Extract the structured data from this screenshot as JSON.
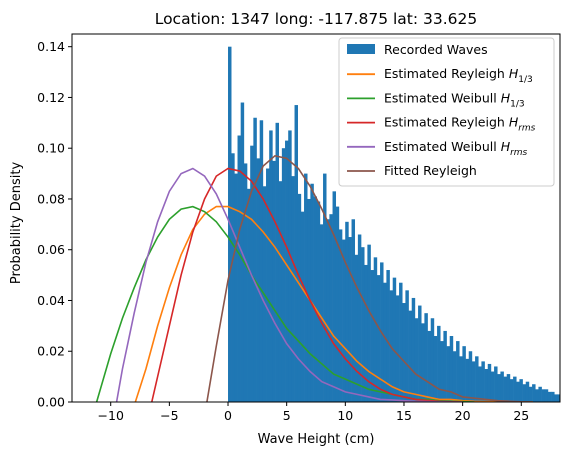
{
  "chart_data": {
    "type": "histogram+line",
    "title": "Location: 1347 long: -117.875 lat: 33.625",
    "xlabel": "Wave Height (cm)",
    "ylabel": "Probability Density",
    "xlim": [
      -13.3,
      28.3
    ],
    "ylim": [
      0,
      0.145
    ],
    "xticks": [
      -10,
      -5,
      0,
      5,
      10,
      15,
      20,
      25
    ],
    "yticks": [
      0.0,
      0.02,
      0.04,
      0.06,
      0.08,
      0.1,
      0.12,
      0.14
    ],
    "xtick_labels": [
      "−10",
      "−5",
      "0",
      "5",
      "10",
      "15",
      "20",
      "25"
    ],
    "ytick_labels": [
      "0.00",
      "0.02",
      "0.04",
      "0.06",
      "0.08",
      "0.10",
      "0.12",
      "0.14"
    ],
    "legend_position": "upper-right",
    "histogram": {
      "name": "Recorded Waves",
      "color": "#1f77b4",
      "bin_width": 0.27,
      "x_start": 0.0,
      "values": [
        0.14,
        0.098,
        0.09,
        0.105,
        0.118,
        0.094,
        0.084,
        0.101,
        0.112,
        0.096,
        0.111,
        0.085,
        0.092,
        0.107,
        0.095,
        0.11,
        0.087,
        0.1,
        0.103,
        0.107,
        0.089,
        0.117,
        0.082,
        0.075,
        0.09,
        0.08,
        0.086,
        0.081,
        0.079,
        0.07,
        0.09,
        0.072,
        0.074,
        0.083,
        0.077,
        0.068,
        0.064,
        0.071,
        0.065,
        0.072,
        0.058,
        0.066,
        0.061,
        0.054,
        0.062,
        0.052,
        0.057,
        0.05,
        0.055,
        0.047,
        0.052,
        0.044,
        0.049,
        0.042,
        0.047,
        0.039,
        0.044,
        0.036,
        0.041,
        0.033,
        0.038,
        0.031,
        0.035,
        0.028,
        0.033,
        0.026,
        0.03,
        0.024,
        0.028,
        0.022,
        0.026,
        0.02,
        0.024,
        0.018,
        0.022,
        0.017,
        0.02,
        0.016,
        0.018,
        0.014,
        0.016,
        0.013,
        0.015,
        0.012,
        0.014,
        0.011,
        0.012,
        0.01,
        0.011,
        0.009,
        0.01,
        0.008,
        0.009,
        0.007,
        0.008,
        0.006,
        0.007,
        0.005,
        0.006,
        0.005,
        0.005,
        0.004,
        0.004,
        0.003,
        0.003,
        0.003,
        0.002,
        0.002,
        0.002,
        0.001,
        0.001,
        0.001,
        0.001,
        0.001,
        0.001,
        0.001,
        0.0,
        0.0,
        0.001,
        0.002,
        0.0,
        0.001,
        0.001,
        0.002,
        0.001,
        0.0,
        0.0,
        0.001,
        0.002,
        0.0,
        0.0,
        0.003,
        0.0,
        0.002,
        0.001,
        0.0,
        0.002,
        0.003,
        0.002,
        0.001,
        0.001,
        0.0,
        0.0,
        0.0,
        0.0,
        0.0,
        0.0,
        0.0,
        0.0,
        0.0,
        0.0,
        0.0,
        0.0,
        0.0,
        0.0,
        0.0,
        0.0,
        0.0,
        0.0,
        0.0,
        0.0,
        0.0,
        0.0,
        0.0,
        0.0,
        0.0,
        0.0,
        0.0,
        0.0,
        0.0,
        0.0,
        0.0,
        0.0,
        0.0,
        0.0,
        0.0,
        0.0,
        0.0,
        0.0,
        0.0,
        0.0,
        0.0,
        0.0,
        0.0,
        0.0,
        0.0,
        0.0,
        0.0,
        0.0,
        0.0,
        0.0,
        0.003,
        0.005,
        0.004
      ]
    },
    "series": [
      {
        "name": "Estimated Reyleigh",
        "subscript": "1/3",
        "color": "#ff7f0e",
        "x": [
          -7.9,
          -7,
          -6,
          -5,
          -4,
          -3,
          -2,
          -1,
          0,
          1,
          2,
          3,
          4,
          5,
          6,
          7,
          8,
          9,
          10,
          11,
          12,
          13,
          14,
          15,
          16,
          17,
          18,
          19,
          20,
          21,
          22,
          23,
          24,
          25,
          26
        ],
        "y": [
          0.0,
          0.013,
          0.03,
          0.045,
          0.058,
          0.068,
          0.074,
          0.077,
          0.077,
          0.075,
          0.072,
          0.067,
          0.061,
          0.054,
          0.047,
          0.04,
          0.033,
          0.026,
          0.021,
          0.016,
          0.012,
          0.009,
          0.006,
          0.004,
          0.003,
          0.002,
          0.001,
          0.001,
          0.0005,
          0.0003,
          0.0002,
          0.0001,
          0.0,
          0.0,
          0.0
        ]
      },
      {
        "name": "Estimated Weibull",
        "subscript": "1/3",
        "color": "#2ca02c",
        "x": [
          -11.2,
          -10,
          -9,
          -8,
          -7,
          -6,
          -5,
          -4,
          -3,
          -2,
          -1,
          0,
          1,
          2,
          3,
          4,
          5,
          6,
          7,
          8,
          9,
          10,
          11,
          12,
          13,
          14,
          15,
          16,
          17,
          18,
          19,
          20,
          21
        ],
        "y": [
          0.0,
          0.019,
          0.033,
          0.045,
          0.056,
          0.065,
          0.072,
          0.076,
          0.077,
          0.075,
          0.071,
          0.065,
          0.058,
          0.05,
          0.043,
          0.036,
          0.029,
          0.024,
          0.019,
          0.015,
          0.011,
          0.009,
          0.007,
          0.005,
          0.004,
          0.003,
          0.002,
          0.001,
          0.001,
          0.0005,
          0.0003,
          0.0002,
          0.0
        ]
      },
      {
        "name": "Estimated Reyleigh",
        "subscript": "rms",
        "color": "#d62728",
        "x": [
          -6.5,
          -6,
          -5,
          -4,
          -3,
          -2,
          -1,
          0,
          1,
          2,
          3,
          4,
          5,
          6,
          7,
          8,
          9,
          10,
          11,
          12,
          13,
          14,
          15,
          16,
          17,
          18,
          19,
          20
        ],
        "y": [
          0.0,
          0.01,
          0.03,
          0.05,
          0.067,
          0.08,
          0.089,
          0.092,
          0.091,
          0.087,
          0.08,
          0.071,
          0.061,
          0.05,
          0.04,
          0.031,
          0.023,
          0.017,
          0.012,
          0.008,
          0.005,
          0.003,
          0.002,
          0.001,
          0.0006,
          0.0003,
          0.0001,
          0.0
        ]
      },
      {
        "name": "Estimated Weibull",
        "subscript": "rms",
        "color": "#9467bd",
        "x": [
          -9.5,
          -9,
          -8,
          -7,
          -6,
          -5,
          -4,
          -3,
          -2,
          -1,
          0,
          1,
          2,
          3,
          4,
          5,
          6,
          7,
          8,
          9,
          10,
          11,
          12,
          13,
          14,
          15,
          16,
          17,
          18,
          19,
          20
        ],
        "y": [
          0.0,
          0.013,
          0.035,
          0.055,
          0.071,
          0.083,
          0.09,
          0.092,
          0.089,
          0.082,
          0.072,
          0.061,
          0.05,
          0.04,
          0.031,
          0.023,
          0.017,
          0.012,
          0.008,
          0.006,
          0.004,
          0.003,
          0.002,
          0.001,
          0.0008,
          0.0005,
          0.0003,
          0.0002,
          0.0001,
          0.0,
          0.0
        ]
      },
      {
        "name": "Fitted Reyleigh",
        "subscript": "",
        "color": "#8c564b",
        "x": [
          -1.8,
          -1,
          0,
          1,
          2,
          3,
          4,
          5,
          6,
          7,
          8,
          9,
          10,
          11,
          12,
          13,
          14,
          15,
          16,
          17,
          18,
          19,
          20,
          21,
          22,
          23,
          24,
          25,
          26
        ],
        "y": [
          0.0,
          0.022,
          0.048,
          0.068,
          0.083,
          0.093,
          0.097,
          0.096,
          0.092,
          0.085,
          0.076,
          0.066,
          0.055,
          0.045,
          0.036,
          0.028,
          0.021,
          0.016,
          0.011,
          0.008,
          0.005,
          0.004,
          0.002,
          0.0015,
          0.001,
          0.0005,
          0.0003,
          0.0001,
          0.0
        ]
      }
    ],
    "legend_labels": [
      "Recorded Waves",
      "Estimated Reyleigh H",
      "Estimated Weibull H",
      "Estimated Reyleigh H",
      "Estimated Weibull H",
      "Fitted Reyleigh"
    ],
    "grid": false
  }
}
